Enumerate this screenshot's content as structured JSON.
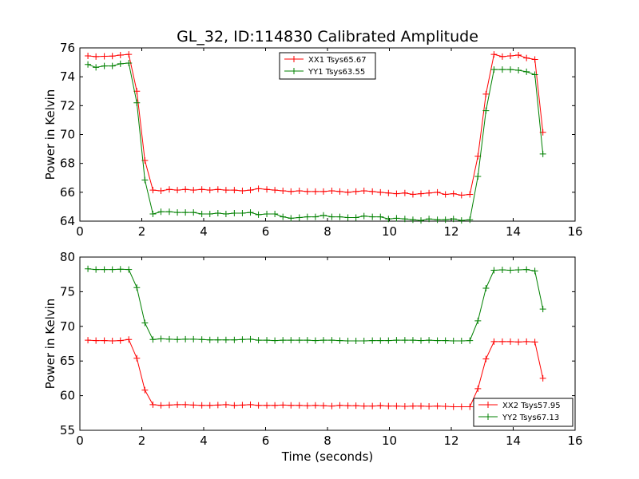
{
  "chart_data": [
    {
      "type": "line",
      "title": "GL_32, ID:114830 Calibrated Amplitude",
      "xlabel": "",
      "ylabel": "Power in Kelvin",
      "xlim": [
        0,
        16
      ],
      "ylim": [
        64,
        76
      ],
      "xticks": [
        "0",
        "2",
        "4",
        "6",
        "8",
        "10",
        "12",
        "14",
        "16"
      ],
      "yticks": [
        "64",
        "66",
        "68",
        "70",
        "72",
        "74",
        "76"
      ],
      "legend_position": "top-center",
      "x": [
        0.26,
        0.52,
        0.79,
        1.05,
        1.31,
        1.58,
        1.84,
        2.1,
        2.36,
        2.62,
        2.89,
        3.15,
        3.41,
        3.67,
        3.94,
        4.2,
        4.46,
        4.72,
        4.99,
        5.25,
        5.51,
        5.77,
        6.04,
        6.3,
        6.56,
        6.82,
        7.09,
        7.35,
        7.61,
        7.87,
        8.14,
        8.4,
        8.66,
        8.92,
        9.18,
        9.45,
        9.71,
        9.97,
        10.23,
        10.5,
        10.76,
        11.02,
        11.28,
        11.55,
        11.81,
        12.07,
        12.33,
        12.6,
        12.86,
        13.12,
        13.38,
        13.65,
        13.91,
        14.17,
        14.43,
        14.7,
        14.96
      ],
      "series": [
        {
          "name": "XX1 Tsys65.67",
          "color": "#ff0000",
          "values": [
            75.45,
            75.4,
            75.42,
            75.43,
            75.5,
            75.55,
            73.0,
            68.2,
            66.15,
            66.1,
            66.2,
            66.15,
            66.2,
            66.15,
            66.2,
            66.15,
            66.2,
            66.15,
            66.15,
            66.1,
            66.15,
            66.25,
            66.2,
            66.15,
            66.1,
            66.05,
            66.1,
            66.05,
            66.05,
            66.05,
            66.1,
            66.05,
            66.0,
            66.05,
            66.1,
            66.05,
            66.0,
            65.95,
            65.9,
            65.95,
            65.85,
            65.9,
            65.95,
            66.0,
            65.85,
            65.9,
            65.8,
            65.85,
            68.5,
            72.8,
            75.55,
            75.4,
            75.45,
            75.5,
            75.3,
            75.2,
            70.15
          ]
        },
        {
          "name": "YY1 Tsys63.55",
          "color": "#008000",
          "values": [
            74.85,
            74.65,
            74.75,
            74.75,
            74.9,
            74.95,
            72.2,
            66.85,
            64.5,
            64.65,
            64.65,
            64.6,
            64.6,
            64.6,
            64.5,
            64.5,
            64.55,
            64.5,
            64.55,
            64.55,
            64.6,
            64.45,
            64.5,
            64.5,
            64.3,
            64.2,
            64.25,
            64.3,
            64.3,
            64.4,
            64.3,
            64.3,
            64.25,
            64.25,
            64.35,
            64.3,
            64.3,
            64.15,
            64.2,
            64.15,
            64.1,
            64.05,
            64.15,
            64.1,
            64.1,
            64.15,
            64.05,
            64.1,
            67.1,
            71.65,
            74.5,
            74.5,
            74.5,
            74.45,
            74.35,
            74.15,
            68.65
          ]
        }
      ]
    },
    {
      "type": "line",
      "title": "",
      "xlabel": "Time (seconds)",
      "ylabel": "Power in Kelvin",
      "xlim": [
        0,
        16
      ],
      "ylim": [
        55,
        80
      ],
      "xticks": [
        "0",
        "2",
        "4",
        "6",
        "8",
        "10",
        "12",
        "14",
        "16"
      ],
      "yticks": [
        "55",
        "60",
        "65",
        "70",
        "75",
        "80"
      ],
      "legend_position": "bottom-right",
      "x": [
        0.26,
        0.52,
        0.79,
        1.05,
        1.31,
        1.58,
        1.84,
        2.1,
        2.36,
        2.62,
        2.89,
        3.15,
        3.41,
        3.67,
        3.94,
        4.2,
        4.46,
        4.72,
        4.99,
        5.25,
        5.51,
        5.77,
        6.04,
        6.3,
        6.56,
        6.82,
        7.09,
        7.35,
        7.61,
        7.87,
        8.14,
        8.4,
        8.66,
        8.92,
        9.18,
        9.45,
        9.71,
        9.97,
        10.23,
        10.5,
        10.76,
        11.02,
        11.28,
        11.55,
        11.81,
        12.07,
        12.33,
        12.6,
        12.86,
        13.12,
        13.38,
        13.65,
        13.91,
        14.17,
        14.43,
        14.7,
        14.96
      ],
      "series": [
        {
          "name": "XX2 Tsys57.95",
          "color": "#ff0000",
          "values": [
            68.0,
            67.95,
            67.95,
            67.9,
            67.95,
            68.1,
            65.4,
            60.8,
            58.7,
            58.6,
            58.65,
            58.7,
            58.7,
            58.65,
            58.6,
            58.6,
            58.65,
            58.7,
            58.6,
            58.65,
            58.7,
            58.6,
            58.6,
            58.6,
            58.65,
            58.6,
            58.6,
            58.55,
            58.6,
            58.55,
            58.5,
            58.6,
            58.55,
            58.55,
            58.5,
            58.5,
            58.55,
            58.5,
            58.5,
            58.45,
            58.5,
            58.5,
            58.45,
            58.5,
            58.45,
            58.4,
            58.4,
            58.4,
            61.0,
            65.3,
            67.8,
            67.8,
            67.8,
            67.75,
            67.8,
            67.75,
            62.5
          ]
        },
        {
          "name": "YY2 Tsys67.13",
          "color": "#008000",
          "values": [
            78.3,
            78.2,
            78.2,
            78.2,
            78.25,
            78.2,
            75.6,
            70.5,
            68.1,
            68.2,
            68.15,
            68.1,
            68.15,
            68.15,
            68.1,
            68.05,
            68.05,
            68.05,
            68.05,
            68.1,
            68.15,
            68.0,
            68.0,
            67.95,
            68.0,
            68.0,
            68.0,
            68.0,
            67.95,
            68.0,
            68.0,
            67.95,
            67.9,
            67.9,
            67.9,
            67.95,
            67.95,
            67.95,
            68.0,
            68.0,
            68.0,
            67.95,
            68.0,
            67.95,
            67.95,
            67.9,
            67.9,
            67.95,
            70.8,
            75.5,
            78.1,
            78.15,
            78.1,
            78.15,
            78.2,
            78.0,
            72.5
          ]
        }
      ]
    }
  ]
}
